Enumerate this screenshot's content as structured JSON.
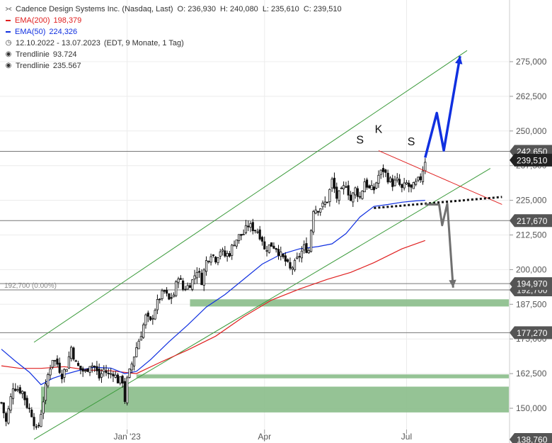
{
  "legend": {
    "title": "Cadence Design Systems Inc. (Nasdaq, Last)",
    "ohlc": {
      "o": "O: 236,930",
      "h": "H: 240,080",
      "l": "L: 235,610",
      "c": "C: 239,510"
    },
    "ema200_label": "EMA(200)",
    "ema200_value": "198,379",
    "ema50_label": "EMA(50)",
    "ema50_value": "224,326",
    "period": "12.10.2022 - 13.07.2023",
    "period_info": "(EDT, 9 Monate, 1 Tag)",
    "trend1_label": "Trendlinie",
    "trend1_value": "93.724",
    "trend2_label": "Trendlinie",
    "trend2_value": "235.567"
  },
  "chart_data": {
    "type": "candlestick",
    "ylim": [
      137,
      279
    ],
    "x_ticks": [
      {
        "label": "Jan '23",
        "i": 54
      },
      {
        "label": "Apr",
        "i": 113
      },
      {
        "label": "Jul",
        "i": 174
      }
    ],
    "y_ticks": [
      {
        "value": 150,
        "label": "150,000"
      },
      {
        "value": 162.5,
        "label": "162,500"
      },
      {
        "value": 175,
        "label": "175,000"
      },
      {
        "value": 187.5,
        "label": "187,500"
      },
      {
        "value": 200,
        "label": "200,000"
      },
      {
        "value": 212.5,
        "label": "212,500"
      },
      {
        "value": 225,
        "label": "225,000"
      },
      {
        "value": 237.5,
        "label": "237,500"
      },
      {
        "value": 250,
        "label": "250,000"
      },
      {
        "value": 262.5,
        "label": "262,500"
      },
      {
        "value": 275,
        "label": "275,000"
      }
    ],
    "price_boxes": [
      {
        "value": 242.65,
        "label": "242,650",
        "bg": "#555555",
        "line": true
      },
      {
        "value": 239.51,
        "label": "239,510",
        "bg": "#222222",
        "line": false
      },
      {
        "value": 217.67,
        "label": "217,670",
        "bg": "#555555",
        "line": true
      },
      {
        "value": 192.7,
        "label": "192,700",
        "bg": "#555555",
        "line": true
      },
      {
        "value": 194.97,
        "label": "194,970",
        "bg": "#555555",
        "line": true
      },
      {
        "value": 177.27,
        "label": "177,270",
        "bg": "#555555",
        "line": true
      },
      {
        "value": 138.76,
        "label": "138,760",
        "bg": "#555555",
        "line": false
      }
    ],
    "ref_label": "192,700 (0.00%)",
    "support_zones": [
      {
        "from_i": 81,
        "low": 186.7,
        "high": 189.3
      },
      {
        "from_i": 58,
        "low": 160.8,
        "high": 162.2
      },
      {
        "from_i": 17,
        "low": 148.5,
        "high": 157.8
      }
    ],
    "channel": {
      "upper": [
        {
          "i": 14,
          "v": 173.8
        },
        {
          "i": 200,
          "v": 279
        }
      ],
      "lower": [
        {
          "i": 14,
          "v": 138.8
        },
        {
          "i": 210,
          "v": 236.5
        }
      ]
    },
    "pattern_labels": [
      {
        "label": "S",
        "i": 154,
        "v": 245.5
      },
      {
        "label": "K",
        "i": 162,
        "v": 249.3
      },
      {
        "label": "S",
        "i": 176,
        "v": 244.8
      }
    ],
    "neckline": {
      "from": {
        "i": 160,
        "v": 222.2
      },
      "to": {
        "i": 215,
        "v": 226.2
      }
    },
    "red_trend": {
      "from": {
        "i": 162,
        "v": 242.9
      },
      "to": {
        "i": 215,
        "v": 223.5
      }
    },
    "projection_up": [
      [
        182,
        240.4
      ],
      [
        187,
        256.5
      ],
      [
        190,
        243
      ],
      [
        197,
        277
      ]
    ],
    "projection_down": [
      [
        182,
        223.5
      ],
      [
        188,
        223.5
      ],
      [
        189.3,
        216
      ],
      [
        191.5,
        223.8
      ],
      [
        194,
        193.5
      ]
    ],
    "ema200": [
      [
        0,
        165.3
      ],
      [
        8,
        164.4
      ],
      [
        17,
        164.4
      ],
      [
        27,
        165
      ],
      [
        37,
        163.8
      ],
      [
        47,
        163.5
      ],
      [
        58,
        162.5
      ],
      [
        68,
        166.5
      ],
      [
        80,
        171
      ],
      [
        92,
        176
      ],
      [
        104,
        183
      ],
      [
        116,
        189
      ],
      [
        128,
        193
      ],
      [
        140,
        196.5
      ],
      [
        150,
        199
      ],
      [
        160,
        202.5
      ],
      [
        172,
        207.5
      ],
      [
        182,
        210.5
      ]
    ],
    "ema50": [
      [
        0,
        171.3
      ],
      [
        6,
        167
      ],
      [
        12,
        163
      ],
      [
        17,
        158.5
      ],
      [
        22,
        160.8
      ],
      [
        27,
        162.2
      ],
      [
        34,
        163.8
      ],
      [
        40,
        164.8
      ],
      [
        47,
        164.5
      ],
      [
        53,
        162.5
      ],
      [
        58,
        163.3
      ],
      [
        64,
        167.5
      ],
      [
        72,
        174
      ],
      [
        80,
        180
      ],
      [
        88,
        186.5
      ],
      [
        96,
        191
      ],
      [
        104,
        196.5
      ],
      [
        112,
        202
      ],
      [
        120,
        205.5
      ],
      [
        128,
        207.5
      ],
      [
        136,
        208.3
      ],
      [
        142,
        209.3
      ],
      [
        148,
        213
      ],
      [
        154,
        219
      ],
      [
        160,
        222.8
      ],
      [
        166,
        223.5
      ],
      [
        172,
        224.3
      ],
      [
        178,
        224.8
      ],
      [
        182,
        225
      ]
    ],
    "candles_approx": {
      "count": 183,
      "close_path": [
        [
          0,
          152
        ],
        [
          2,
          145
        ],
        [
          5,
          158
        ],
        [
          7,
          157
        ],
        [
          9,
          156
        ],
        [
          11,
          151
        ],
        [
          13,
          148
        ],
        [
          15,
          142
        ],
        [
          16,
          144
        ],
        [
          18,
          153
        ],
        [
          20,
          162
        ],
        [
          22,
          168
        ],
        [
          24,
          166
        ],
        [
          26,
          162
        ],
        [
          28,
          165
        ],
        [
          30,
          172
        ],
        [
          32,
          166
        ],
        [
          34,
          164
        ],
        [
          36,
          163
        ],
        [
          38,
          166
        ],
        [
          40,
          165
        ],
        [
          42,
          161
        ],
        [
          44,
          164
        ],
        [
          46,
          162
        ],
        [
          48,
          163
        ],
        [
          50,
          160
        ],
        [
          52,
          160
        ],
        [
          53,
          153
        ],
        [
          54,
          160
        ],
        [
          56,
          166
        ],
        [
          58,
          172
        ],
        [
          60,
          177
        ],
        [
          62,
          183
        ],
        [
          64,
          181
        ],
        [
          66,
          186
        ],
        [
          68,
          190
        ],
        [
          70,
          192
        ],
        [
          72,
          189
        ],
        [
          74,
          191
        ],
        [
          76,
          198
        ],
        [
          78,
          193
        ],
        [
          80,
          194
        ],
        [
          82,
          196
        ],
        [
          84,
          200
        ],
        [
          86,
          196
        ],
        [
          88,
          203
        ],
        [
          90,
          206
        ],
        [
          92,
          204
        ],
        [
          94,
          207
        ],
        [
          96,
          205
        ],
        [
          98,
          206
        ],
        [
          100,
          210
        ],
        [
          102,
          212
        ],
        [
          104,
          213
        ],
        [
          106,
          216
        ],
        [
          108,
          215
        ],
        [
          110,
          214
        ],
        [
          112,
          211
        ],
        [
          113,
          207
        ],
        [
          114,
          208
        ],
        [
          116,
          209
        ],
        [
          118,
          208
        ],
        [
          120,
          205
        ],
        [
          122,
          203
        ],
        [
          124,
          200
        ],
        [
          126,
          202
        ],
        [
          128,
          205
        ],
        [
          130,
          208
        ],
        [
          132,
          207
        ],
        [
          134,
          222
        ],
        [
          136,
          222
        ],
        [
          138,
          223
        ],
        [
          140,
          225
        ],
        [
          142,
          232
        ],
        [
          144,
          226
        ],
        [
          146,
          228
        ],
        [
          148,
          231
        ],
        [
          150,
          225
        ],
        [
          152,
          229
        ],
        [
          154,
          226
        ],
        [
          156,
          232
        ],
        [
          158,
          229
        ],
        [
          160,
          229
        ],
        [
          162,
          234
        ],
        [
          164,
          236
        ],
        [
          166,
          233
        ],
        [
          168,
          231
        ],
        [
          170,
          232
        ],
        [
          172,
          229
        ],
        [
          174,
          231
        ],
        [
          176,
          229
        ],
        [
          178,
          231
        ],
        [
          180,
          233
        ],
        [
          182,
          239.5
        ]
      ]
    }
  }
}
